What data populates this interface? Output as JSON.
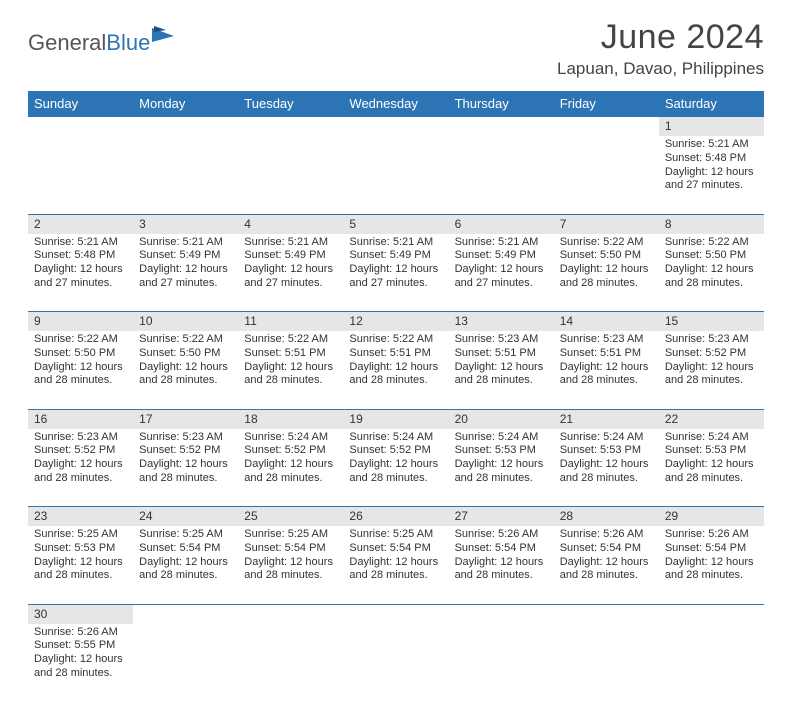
{
  "logo": {
    "part1": "General",
    "part2": "Blue"
  },
  "title": "June 2024",
  "subtitle": "Lapuan, Davao, Philippines",
  "colors": {
    "header_bg": "#2d74b5",
    "header_text": "#ffffff",
    "daynum_bg": "#e6e6e6",
    "border": "#2d74b5",
    "text": "#333333",
    "background": "#ffffff"
  },
  "typography": {
    "title_fontsize": 34,
    "subtitle_fontsize": 17,
    "header_fontsize": 13,
    "daynum_fontsize": 12,
    "body_fontsize": 11
  },
  "day_headers": [
    "Sunday",
    "Monday",
    "Tuesday",
    "Wednesday",
    "Thursday",
    "Friday",
    "Saturday"
  ],
  "weeks": [
    [
      null,
      null,
      null,
      null,
      null,
      null,
      {
        "n": "1",
        "sr": "5:21 AM",
        "ss": "5:48 PM",
        "dl": "12 hours",
        "dm": "and 27 minutes."
      }
    ],
    [
      {
        "n": "2",
        "sr": "5:21 AM",
        "ss": "5:48 PM",
        "dl": "12 hours",
        "dm": "and 27 minutes."
      },
      {
        "n": "3",
        "sr": "5:21 AM",
        "ss": "5:49 PM",
        "dl": "12 hours",
        "dm": "and 27 minutes."
      },
      {
        "n": "4",
        "sr": "5:21 AM",
        "ss": "5:49 PM",
        "dl": "12 hours",
        "dm": "and 27 minutes."
      },
      {
        "n": "5",
        "sr": "5:21 AM",
        "ss": "5:49 PM",
        "dl": "12 hours",
        "dm": "and 27 minutes."
      },
      {
        "n": "6",
        "sr": "5:21 AM",
        "ss": "5:49 PM",
        "dl": "12 hours",
        "dm": "and 27 minutes."
      },
      {
        "n": "7",
        "sr": "5:22 AM",
        "ss": "5:50 PM",
        "dl": "12 hours",
        "dm": "and 28 minutes."
      },
      {
        "n": "8",
        "sr": "5:22 AM",
        "ss": "5:50 PM",
        "dl": "12 hours",
        "dm": "and 28 minutes."
      }
    ],
    [
      {
        "n": "9",
        "sr": "5:22 AM",
        "ss": "5:50 PM",
        "dl": "12 hours",
        "dm": "and 28 minutes."
      },
      {
        "n": "10",
        "sr": "5:22 AM",
        "ss": "5:50 PM",
        "dl": "12 hours",
        "dm": "and 28 minutes."
      },
      {
        "n": "11",
        "sr": "5:22 AM",
        "ss": "5:51 PM",
        "dl": "12 hours",
        "dm": "and 28 minutes."
      },
      {
        "n": "12",
        "sr": "5:22 AM",
        "ss": "5:51 PM",
        "dl": "12 hours",
        "dm": "and 28 minutes."
      },
      {
        "n": "13",
        "sr": "5:23 AM",
        "ss": "5:51 PM",
        "dl": "12 hours",
        "dm": "and 28 minutes."
      },
      {
        "n": "14",
        "sr": "5:23 AM",
        "ss": "5:51 PM",
        "dl": "12 hours",
        "dm": "and 28 minutes."
      },
      {
        "n": "15",
        "sr": "5:23 AM",
        "ss": "5:52 PM",
        "dl": "12 hours",
        "dm": "and 28 minutes."
      }
    ],
    [
      {
        "n": "16",
        "sr": "5:23 AM",
        "ss": "5:52 PM",
        "dl": "12 hours",
        "dm": "and 28 minutes."
      },
      {
        "n": "17",
        "sr": "5:23 AM",
        "ss": "5:52 PM",
        "dl": "12 hours",
        "dm": "and 28 minutes."
      },
      {
        "n": "18",
        "sr": "5:24 AM",
        "ss": "5:52 PM",
        "dl": "12 hours",
        "dm": "and 28 minutes."
      },
      {
        "n": "19",
        "sr": "5:24 AM",
        "ss": "5:52 PM",
        "dl": "12 hours",
        "dm": "and 28 minutes."
      },
      {
        "n": "20",
        "sr": "5:24 AM",
        "ss": "5:53 PM",
        "dl": "12 hours",
        "dm": "and 28 minutes."
      },
      {
        "n": "21",
        "sr": "5:24 AM",
        "ss": "5:53 PM",
        "dl": "12 hours",
        "dm": "and 28 minutes."
      },
      {
        "n": "22",
        "sr": "5:24 AM",
        "ss": "5:53 PM",
        "dl": "12 hours",
        "dm": "and 28 minutes."
      }
    ],
    [
      {
        "n": "23",
        "sr": "5:25 AM",
        "ss": "5:53 PM",
        "dl": "12 hours",
        "dm": "and 28 minutes."
      },
      {
        "n": "24",
        "sr": "5:25 AM",
        "ss": "5:54 PM",
        "dl": "12 hours",
        "dm": "and 28 minutes."
      },
      {
        "n": "25",
        "sr": "5:25 AM",
        "ss": "5:54 PM",
        "dl": "12 hours",
        "dm": "and 28 minutes."
      },
      {
        "n": "26",
        "sr": "5:25 AM",
        "ss": "5:54 PM",
        "dl": "12 hours",
        "dm": "and 28 minutes."
      },
      {
        "n": "27",
        "sr": "5:26 AM",
        "ss": "5:54 PM",
        "dl": "12 hours",
        "dm": "and 28 minutes."
      },
      {
        "n": "28",
        "sr": "5:26 AM",
        "ss": "5:54 PM",
        "dl": "12 hours",
        "dm": "and 28 minutes."
      },
      {
        "n": "29",
        "sr": "5:26 AM",
        "ss": "5:54 PM",
        "dl": "12 hours",
        "dm": "and 28 minutes."
      }
    ],
    [
      {
        "n": "30",
        "sr": "5:26 AM",
        "ss": "5:55 PM",
        "dl": "12 hours",
        "dm": "and 28 minutes."
      },
      null,
      null,
      null,
      null,
      null,
      null
    ]
  ],
  "labels": {
    "sunrise": "Sunrise:",
    "sunset": "Sunset:",
    "daylight": "Daylight:"
  }
}
